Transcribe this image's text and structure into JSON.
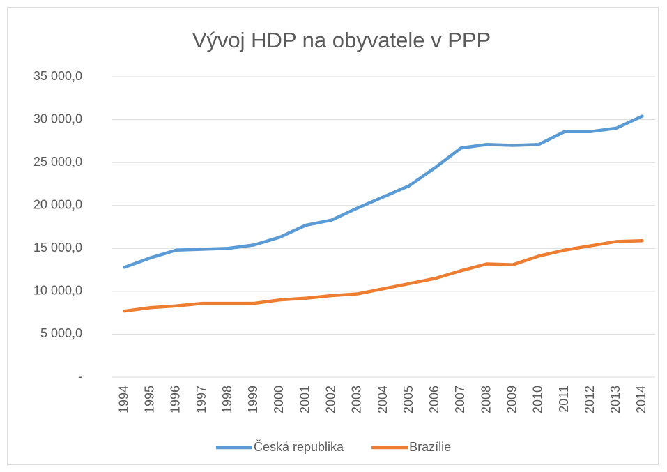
{
  "chart_data": {
    "type": "line",
    "title": "Vývoj HDP na obyvatele v PPP",
    "categories": [
      "1994",
      "1995",
      "1996",
      "1997",
      "1998",
      "1999",
      "2000",
      "2001",
      "2002",
      "2003",
      "2004",
      "2005",
      "2006",
      "2007",
      "2008",
      "2009",
      "2010",
      "2011",
      "2012",
      "2013",
      "2014"
    ],
    "series": [
      {
        "name": "Česká republika",
        "color": "#5b9bd5",
        "values": [
          12800,
          13900,
          14800,
          14900,
          15000,
          15400,
          16300,
          17700,
          18300,
          19700,
          21000,
          22300,
          24400,
          26700,
          27100,
          27000,
          27100,
          28600,
          28600,
          29000,
          30400
        ]
      },
      {
        "name": "Brazílie",
        "color": "#ed7d31",
        "values": [
          7700,
          8100,
          8300,
          8600,
          8600,
          8600,
          9000,
          9200,
          9500,
          9700,
          10300,
          10900,
          11500,
          12400,
          13200,
          13100,
          14100,
          14800,
          15300,
          15800,
          15900
        ]
      }
    ],
    "ylim": [
      0,
      35000
    ],
    "yticks": [
      {
        "value": 0,
        "label": "-"
      },
      {
        "value": 5000,
        "label": "5 000,0"
      },
      {
        "value": 10000,
        "label": "10 000,0"
      },
      {
        "value": 15000,
        "label": "15 000,0"
      },
      {
        "value": 20000,
        "label": "20 000,0"
      },
      {
        "value": 25000,
        "label": "25 000,0"
      },
      {
        "value": 30000,
        "label": "30 000,0"
      },
      {
        "value": 35000,
        "label": "35 000,0"
      }
    ],
    "grid": true,
    "legend": "bottom"
  }
}
